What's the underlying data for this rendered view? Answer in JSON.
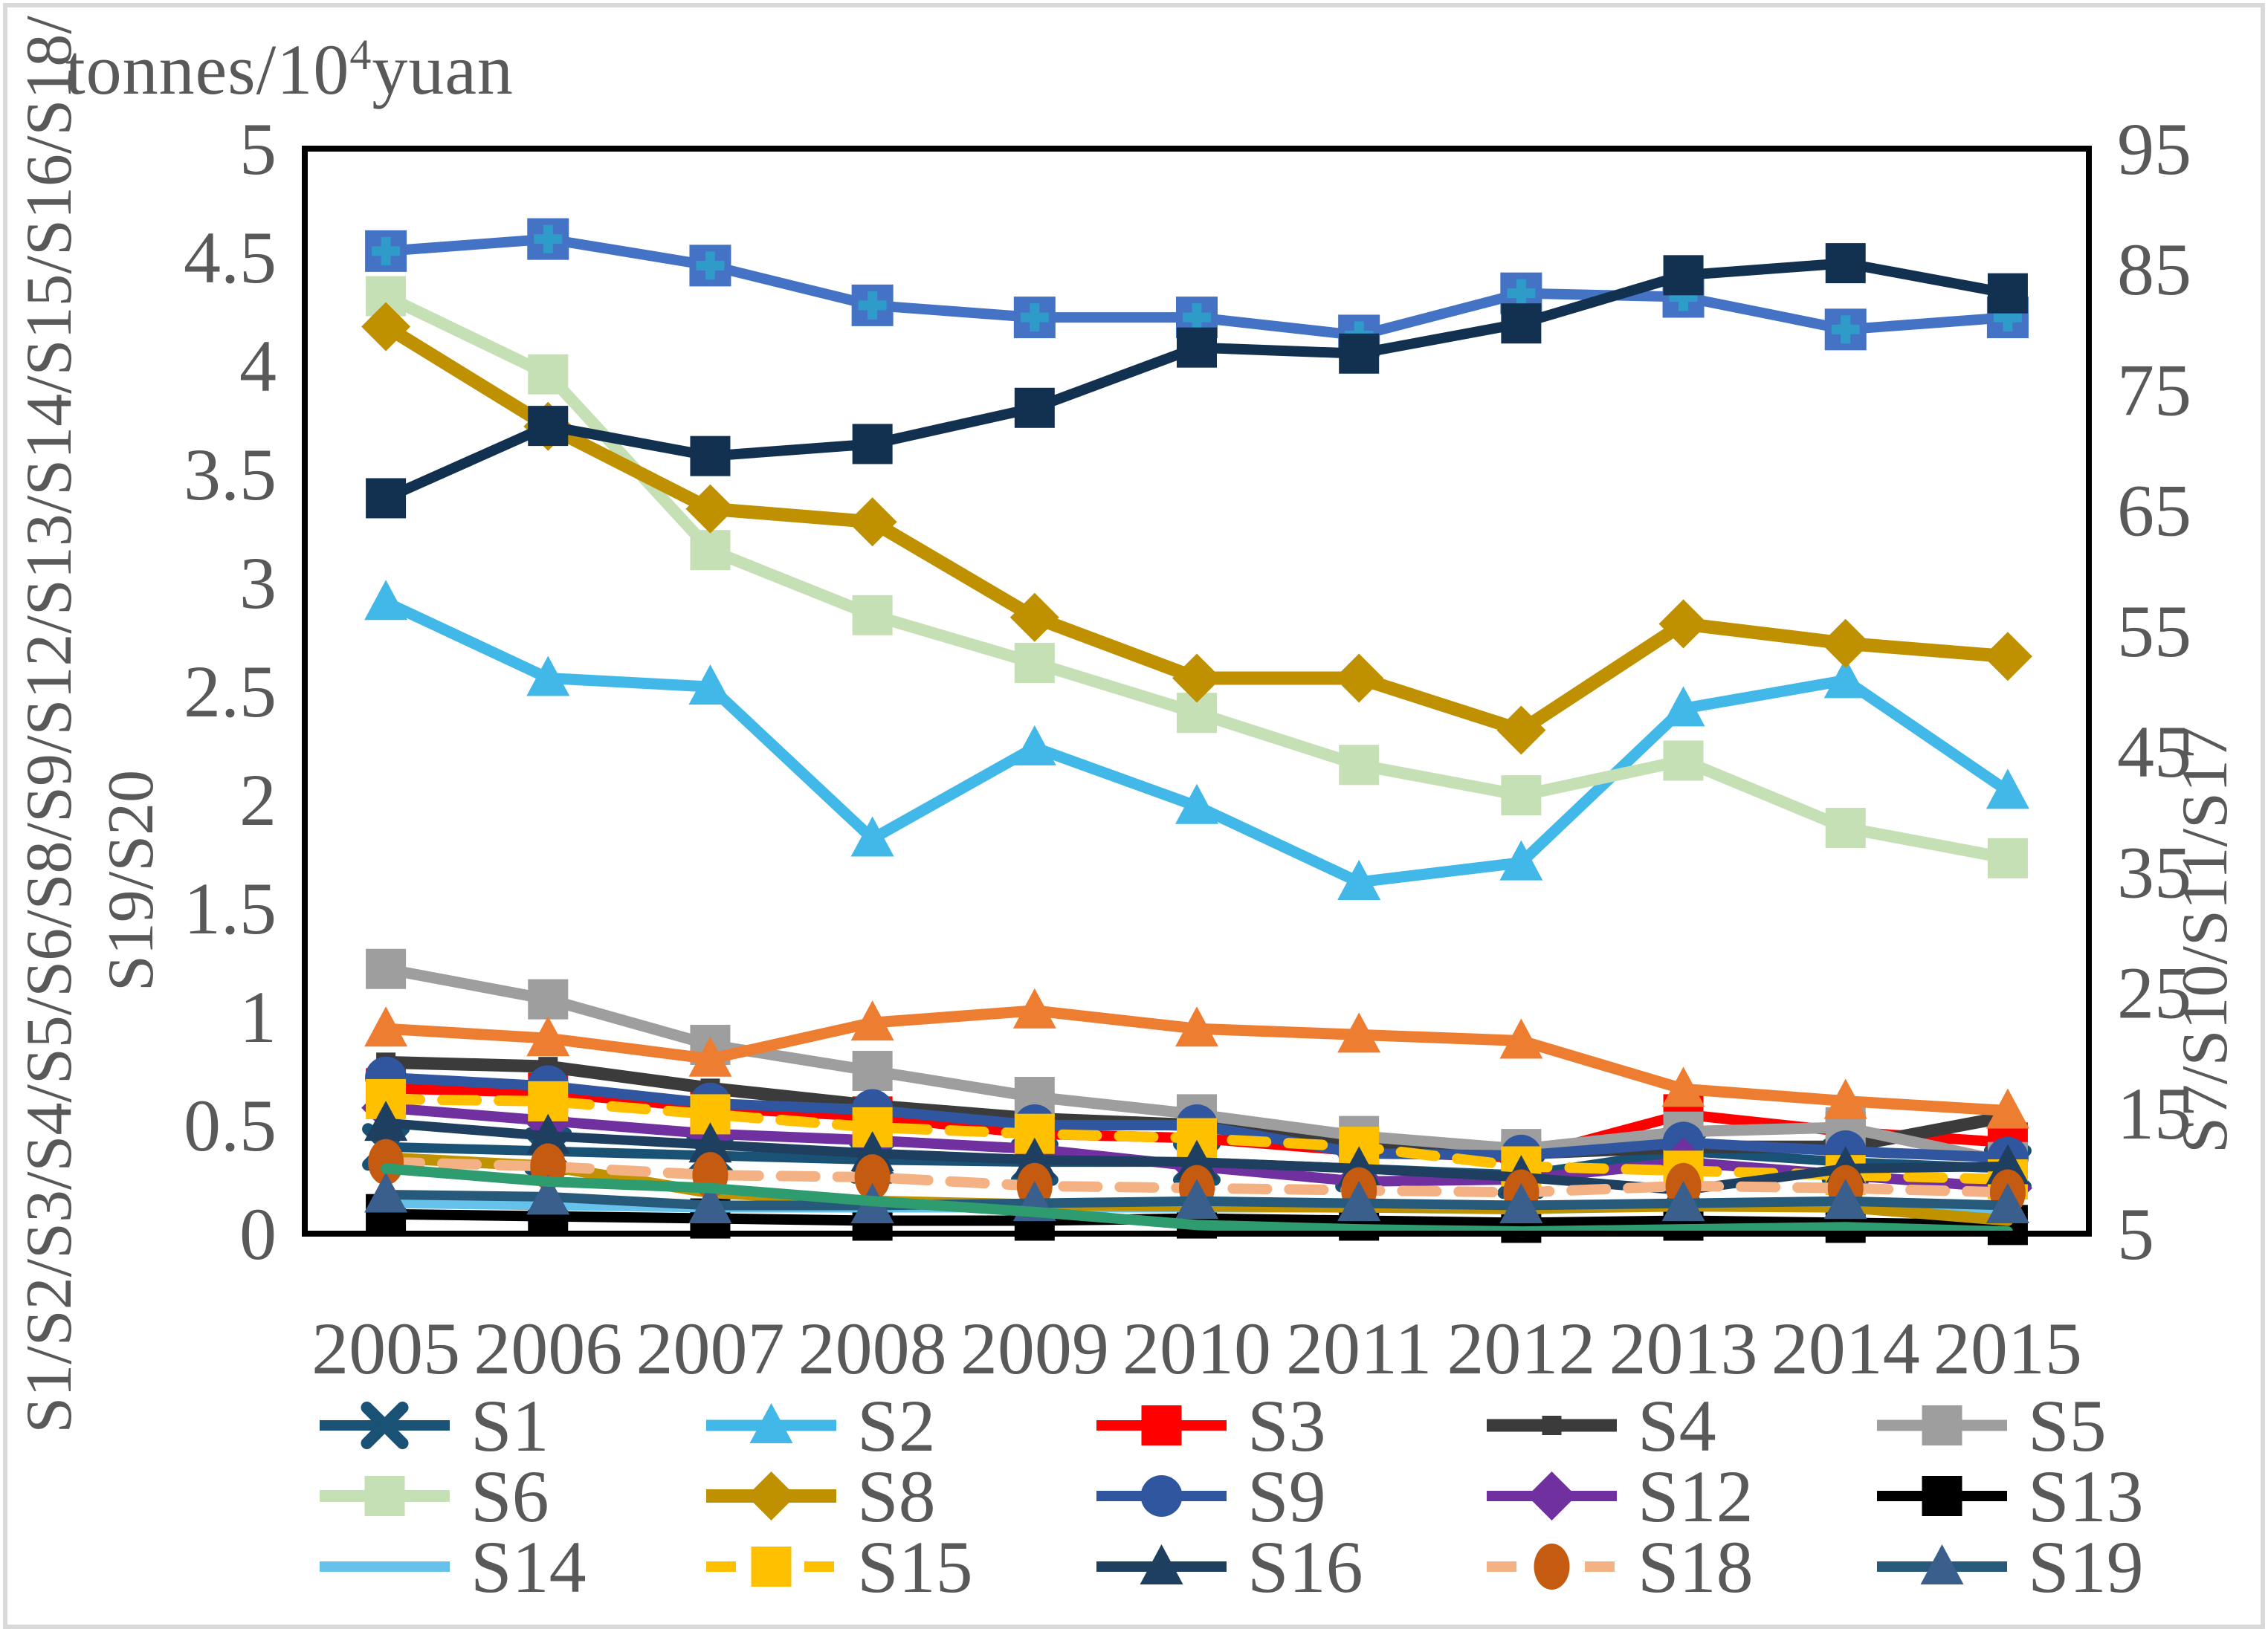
{
  "figure": {
    "unit_label": {
      "prefix": "tonnes/10",
      "sup": "4",
      "suffix": "yuan"
    }
  },
  "chart_data": {
    "type": "line",
    "x_categories": [
      "2005",
      "2006",
      "2007",
      "2008",
      "2009",
      "2010",
      "2011",
      "2012",
      "2013",
      "2014",
      "2015"
    ],
    "left_axis": {
      "label_line1": "S1/S2/S3/S4/S5/S6/S8/S9/S12/S13/S14/S15/S16/S18/",
      "label_line2": "S19/S20",
      "min": 0,
      "max": 5,
      "tick_values": [
        0,
        0.5,
        1,
        1.5,
        2,
        2.5,
        3,
        3.5,
        4,
        4.5,
        5
      ],
      "tick_labels": [
        "0",
        "0.5",
        "1",
        "1.5",
        "2",
        "2.5",
        "3",
        "3.5",
        "4",
        "4.5",
        "5"
      ]
    },
    "right_axis": {
      "label": "S7/S10/S11/S17",
      "min": 5,
      "max": 95,
      "tick_values": [
        5,
        15,
        25,
        35,
        45,
        55,
        65,
        75,
        85,
        95
      ],
      "tick_labels": [
        "5",
        "15",
        "25",
        "35",
        "45",
        "55",
        "65",
        "75",
        "85",
        "95"
      ]
    },
    "grid": "off",
    "legend_position": "bottom",
    "legend_rows": [
      [
        "S1",
        "S2",
        "S3",
        "S4",
        "S5"
      ],
      [
        "S6",
        "S8",
        "S9",
        "S12",
        "S13"
      ],
      [
        "S14",
        "S15",
        "S16",
        "S18",
        "S19"
      ]
    ],
    "series": [
      {
        "name": "S1",
        "axis": "left",
        "line_color": "#1A5276",
        "marker_color": "#1A5276",
        "marker": "x",
        "dash": "none",
        "width": 13,
        "values": [
          0.4,
          0.38,
          0.36,
          0.34,
          0.33,
          0.33,
          0.3,
          0.27,
          0.38,
          0.33,
          0.3
        ]
      },
      {
        "name": "S2",
        "axis": "left",
        "line_color": "#41B8E8",
        "marker_color": "#41B8E8",
        "marker": "triangle",
        "dash": "none",
        "width": 15,
        "values": [
          2.91,
          2.56,
          2.52,
          1.82,
          2.24,
          1.97,
          1.62,
          1.71,
          2.42,
          2.55,
          2.04
        ]
      },
      {
        "name": "S3",
        "axis": "left",
        "line_color": "#FF0000",
        "marker_color": "#FF0000",
        "marker": "square",
        "dash": "none",
        "width": 14,
        "values": [
          0.67,
          0.65,
          0.58,
          0.54,
          0.46,
          0.44,
          0.38,
          0.35,
          0.55,
          0.47,
          0.42
        ]
      },
      {
        "name": "S4",
        "axis": "left",
        "line_color": "#3B3B3B",
        "marker_color": "#3B3B3B",
        "marker": "small-square",
        "dash": "none",
        "width": 17,
        "values": [
          0.79,
          0.77,
          0.67,
          0.59,
          0.53,
          0.5,
          0.4,
          0.37,
          0.4,
          0.4,
          0.54
        ]
      },
      {
        "name": "S5",
        "axis": "left",
        "line_color": "#9E9E9E",
        "marker_color": "#9E9E9E",
        "marker": "square",
        "dash": "none",
        "width": 15,
        "values": [
          1.22,
          1.08,
          0.87,
          0.75,
          0.63,
          0.55,
          0.45,
          0.39,
          0.47,
          0.49,
          0.33
        ]
      },
      {
        "name": "S6",
        "axis": "left",
        "line_color": "#C5E0B4",
        "marker_color": "#C5E0B4",
        "marker": "square",
        "dash": "none",
        "width": 16,
        "values": [
          4.32,
          3.96,
          3.15,
          2.85,
          2.63,
          2.4,
          2.16,
          2.02,
          2.18,
          1.87,
          1.73
        ]
      },
      {
        "name": "S7",
        "axis": "right",
        "line_color": "#4472C4",
        "marker_color": "#4472C4",
        "marker": "square-plus",
        "dash": "none",
        "width": 14,
        "values": [
          86.5,
          87.5,
          85.3,
          82,
          81,
          81,
          79.5,
          83,
          82.7,
          80,
          81
        ]
      },
      {
        "name": "S8",
        "axis": "left",
        "line_color": "#BF9000",
        "marker_color": "#BF9000",
        "marker": "diamond",
        "dash": "none",
        "width": 18,
        "values": [
          4.18,
          3.72,
          3.34,
          3.28,
          2.84,
          2.56,
          2.56,
          2.32,
          2.81,
          2.72,
          2.66
        ]
      },
      {
        "name": "S9",
        "axis": "left",
        "line_color": "#3056A0",
        "marker_color": "#3056A0",
        "marker": "circle",
        "dash": "none",
        "width": 14,
        "values": [
          0.72,
          0.68,
          0.6,
          0.57,
          0.5,
          0.5,
          0.37,
          0.36,
          0.42,
          0.38,
          0.35
        ]
      },
      {
        "name": "S10",
        "axis": "right",
        "line_color": "#12304F",
        "marker_color": "#12304F",
        "marker": "square",
        "dash": "none",
        "width": 14,
        "values": [
          66,
          72,
          69.5,
          70.5,
          73.5,
          78.5,
          78,
          80.5,
          84.5,
          85.5,
          83
        ]
      },
      {
        "name": "S11",
        "axis": "right",
        "line_color": "#ED7D31",
        "marker_color": "#ED7D31",
        "marker": "triangle",
        "dash": "none",
        "width": 15,
        "values": [
          22,
          21.2,
          19.5,
          22.5,
          23.5,
          22,
          21.5,
          21,
          17,
          16,
          15.2
        ]
      },
      {
        "name": "S12",
        "axis": "left",
        "line_color": "#7030A0",
        "marker_color": "#7030A0",
        "marker": "diamond",
        "dash": "none",
        "width": 14,
        "values": [
          0.58,
          0.52,
          0.46,
          0.43,
          0.39,
          0.31,
          0.24,
          0.25,
          0.33,
          0.27,
          0.21
        ]
      },
      {
        "name": "S13",
        "axis": "left",
        "line_color": "#000000",
        "marker_color": "#000000",
        "marker": "square",
        "dash": "none",
        "width": 14,
        "values": [
          0.09,
          0.08,
          0.07,
          0.06,
          0.06,
          0.07,
          0.06,
          0.05,
          0.06,
          0.05,
          0.04
        ]
      },
      {
        "name": "S14",
        "axis": "left",
        "line_color": "#66C2EA",
        "marker_color": "#66C2EA",
        "marker": "none",
        "dash": "none",
        "width": 13,
        "values": [
          0.14,
          0.13,
          0.12,
          0.12,
          0.12,
          0.12,
          0.12,
          0.11,
          0.13,
          0.12,
          0.1
        ]
      },
      {
        "name": "S15",
        "axis": "left",
        "line_color": "#FFC000",
        "marker_color": "#FFC000",
        "marker": "square",
        "dash": "dashed",
        "width": 14,
        "values": [
          0.62,
          0.61,
          0.55,
          0.49,
          0.46,
          0.44,
          0.4,
          0.31,
          0.29,
          0.27,
          0.25
        ]
      },
      {
        "name": "S16",
        "axis": "left",
        "line_color": "#1F3F60",
        "marker_color": "#1F3F60",
        "marker": "triangle",
        "dash": "none",
        "width": 13,
        "values": [
          0.51,
          0.45,
          0.41,
          0.37,
          0.34,
          0.33,
          0.3,
          0.26,
          0.2,
          0.3,
          0.31
        ]
      },
      {
        "name": "S17",
        "axis": "right",
        "line_color": "#C09200",
        "marker_color": "#C09200",
        "marker": "none",
        "dash": "none",
        "width": 15,
        "values": [
          11.3,
          10.6,
          8.4,
          7.7,
          7.4,
          7.3,
          7.2,
          7.1,
          7.3,
          7.2,
          6.1
        ]
      },
      {
        "name": "S18",
        "axis": "left",
        "line_color": "#F4B183",
        "marker_color": "#C55A11",
        "marker": "ellipse",
        "dash": "dashed",
        "width": 14,
        "values": [
          0.33,
          0.31,
          0.27,
          0.26,
          0.22,
          0.21,
          0.2,
          0.19,
          0.22,
          0.21,
          0.19
        ]
      },
      {
        "name": "S19",
        "axis": "left",
        "line_color": "#27597B",
        "marker_color": "#3A5F8C",
        "marker": "triangle",
        "dash": "none",
        "width": 13,
        "values": [
          0.18,
          0.17,
          0.13,
          0.13,
          0.14,
          0.15,
          0.14,
          0.13,
          0.14,
          0.15,
          0.13
        ]
      },
      {
        "name": "S20",
        "axis": "left",
        "line_color": "#2E9C6E",
        "marker_color": "#2E9C6E",
        "marker": "none",
        "dash": "none",
        "width": 14,
        "values": [
          0.3,
          0.24,
          0.21,
          0.15,
          0.1,
          0.04,
          0.02,
          0.01,
          0.02,
          0.03,
          0.01
        ]
      }
    ],
    "text_color": "#595959",
    "frame_color": "#000000"
  }
}
